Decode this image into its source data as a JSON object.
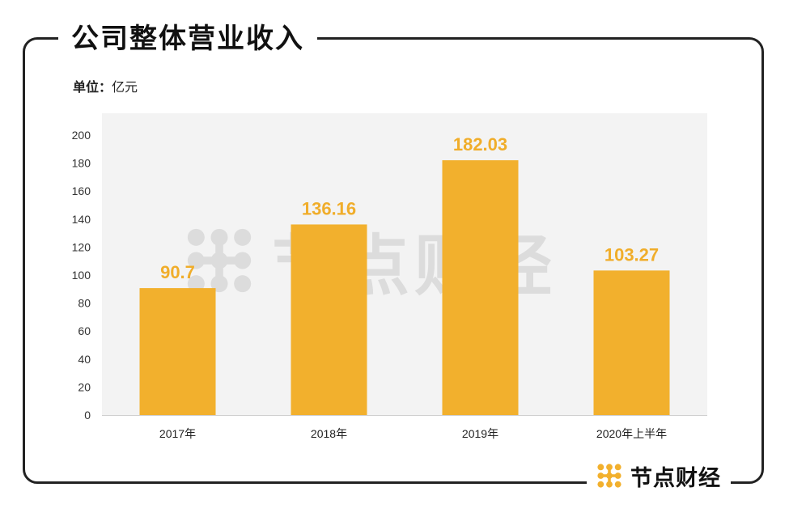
{
  "header": {
    "title": "公司整体营业收入"
  },
  "unit": {
    "key": "单位：",
    "value": "亿元"
  },
  "brand": {
    "name": "节点财经",
    "logo_icon": "dot-grid-logo-icon"
  },
  "colors": {
    "bar": "#f2b02d",
    "label": "#f0ad2a",
    "plot_bg": "#f3f3f3",
    "frame": "#222222"
  },
  "chart_data": {
    "type": "bar",
    "categories": [
      "2017年",
      "2018年",
      "2019年",
      "2020年上半年"
    ],
    "values": [
      90.7,
      136.16,
      182.03,
      103.27
    ],
    "data_labels": [
      "90.7",
      "136.16",
      "182.03",
      "103.27"
    ],
    "ylim": [
      0,
      200
    ],
    "yticks": [
      "0",
      "20",
      "40",
      "60",
      "80",
      "100",
      "120",
      "140",
      "160",
      "180",
      "200"
    ],
    "grid": false,
    "legend": "none"
  }
}
